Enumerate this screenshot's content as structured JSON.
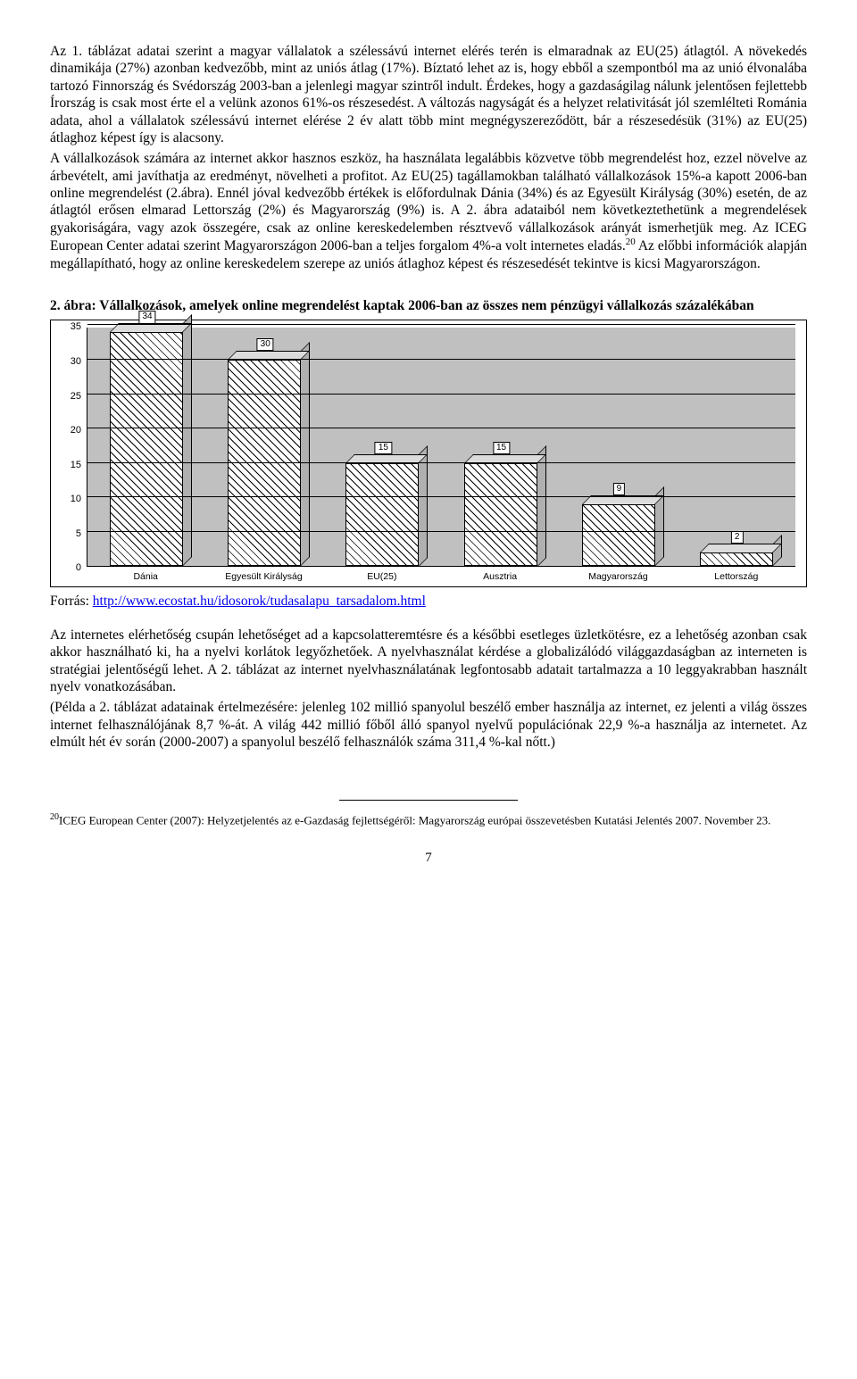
{
  "para1": "Az 1. táblázat adatai szerint a magyar vállalatok a szélessávú internet elérés terén is elmaradnak az EU(25) átlagtól. A növekedés dinamikája (27%) azonban kedvezőbb, mint az uniós átlag (17%). Bíztató lehet az is, hogy ebből a szempontból ma az unió élvonalába tartozó Finnország és Svédország 2003-ban a jelenlegi magyar szintről indult. Érdekes, hogy a gazdaságilag nálunk jelentősen fejlettebb Írország is csak most érte el a velünk azonos 61%-os részesedést. A változás nagyságát és a helyzet relativitását jól szemlélteti Románia adata, ahol a vállalatok szélessávú internet elérése 2 év alatt több mint megnégyszereződött, bár a részesedésük (31%) az EU(25) átlaghoz képest így is alacsony.",
  "para2_a": "A vállalkozások számára az internet akkor hasznos eszköz, ha használata legalábbis közvetve több megrendelést hoz, ezzel növelve az árbevételt, ami javíthatja az eredményt, növelheti a profitot. Az EU(25) tagállamokban található  vállalkozások 15%-a kapott 2006-ban online megrendelést (2.ábra). Ennél jóval kedvezőbb értékek is előfordulnak Dánia (34%) és az Egyesült Királyság (30%) esetén, de az átlagtól erősen elmarad Lettország (2%) és Magyarország (9%) is. A 2. ábra adataiból nem következtethetünk a megrendelések gyakoriságára, vagy azok összegére, csak az online kereskedelemben résztvevő vállalkozások arányát ismerhetjük meg. Az ICEG European Center adatai szerint Magyarországon 2006-ban a teljes forgalom 4%-a volt internetes eladás.",
  "para2_fn": "20",
  "para2_b": " Az előbbi információk alapján megállapítható, hogy az online kereskedelem szerepe az uniós átlaghoz képest és részesedését tekintve is kicsi Magyarországon.",
  "chart": {
    "title": "2. ábra: Vállalkozások, amelyek online megrendelést kaptak 2006-ban az összes nem pénzügyi vállalkozás százalékában",
    "ymax": 35,
    "ystep": 5,
    "yticks": [
      "0",
      "5",
      "10",
      "15",
      "20",
      "25",
      "30",
      "35"
    ],
    "categories": [
      "Dánia",
      "Egyesült Királyság",
      "EU(25)",
      "Ausztria",
      "Magyarország",
      "Lettország"
    ],
    "values": [
      34,
      30,
      15,
      15,
      9,
      2
    ],
    "plot_bg": "#c0c0c0"
  },
  "source_label": "Forrás: ",
  "source_link_text": "http://www.ecostat.hu/idosorok/tudasalapu_tarsadalom.html",
  "para3": "Az internetes elérhetőség csupán lehetőséget ad a kapcsolatteremtésre és a későbbi esetleges üzletkötésre, ez a lehetőség azonban csak akkor használható ki, ha a nyelvi korlátok legyőzhetőek. A nyelvhasználat kérdése a globalizálódó világgazdaságban az interneten is stratégiai jelentőségű lehet. A 2. táblázat az internet nyelvhasználatának legfontosabb adatait tartalmazza a 10 leggyakrabban használt nyelv vonatkozásában.",
  "para4": "(Példa a 2. táblázat adatainak értelmezésére: jelenleg 102 millió spanyolul beszélő ember használja az internet, ez jelenti a világ összes internet felhasználójának 8,7 %-át. A világ 442 millió főből álló spanyol nyelvű populációnak 22,9 %-a használja az internetet. Az elmúlt hét év során (2000-2007) a spanyolul beszélő felhasználók száma 311,4 %-kal nőtt.)",
  "footnote_num": "20",
  "footnote_text": "ICEG European Center (2007):  Helyzetjelentés az e-Gazdaság fejlettségéről: Magyarország európai összevetésben Kutatási Jelentés 2007. November 23.",
  "page_number": "7"
}
